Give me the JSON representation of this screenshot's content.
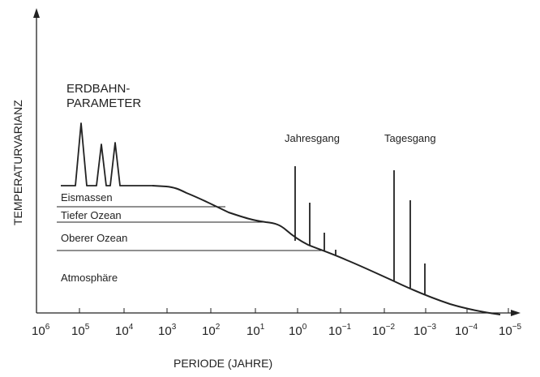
{
  "diagram": {
    "y_axis_label": "TEMPERATURVARIANZ",
    "x_axis_label": "PERIODE (JAHRE)",
    "x_ticks": [
      {
        "base": "10",
        "exp": "6"
      },
      {
        "base": "10",
        "exp": "5"
      },
      {
        "base": "10",
        "exp": "4"
      },
      {
        "base": "10",
        "exp": "3"
      },
      {
        "base": "10",
        "exp": "2"
      },
      {
        "base": "10",
        "exp": "1"
      },
      {
        "base": "10",
        "exp": "0"
      },
      {
        "base": "10",
        "exp": "−1"
      },
      {
        "base": "10",
        "exp": "−2"
      },
      {
        "base": "10",
        "exp": "−3"
      },
      {
        "base": "10",
        "exp": "−4"
      },
      {
        "base": "10",
        "exp": "−5"
      }
    ],
    "annotation_orbital_line1": "ERDBAHN-",
    "annotation_orbital_line2": "PARAMETER",
    "annotation_annual": "Jahresgang",
    "annotation_daily": "Tagesgang",
    "reservoirs": [
      "Eismassen",
      "Tiefer Ozean",
      "Oberer Ozean",
      "Atmosphäre"
    ],
    "colors": {
      "ink": "#222222",
      "background": "#ffffff"
    }
  }
}
